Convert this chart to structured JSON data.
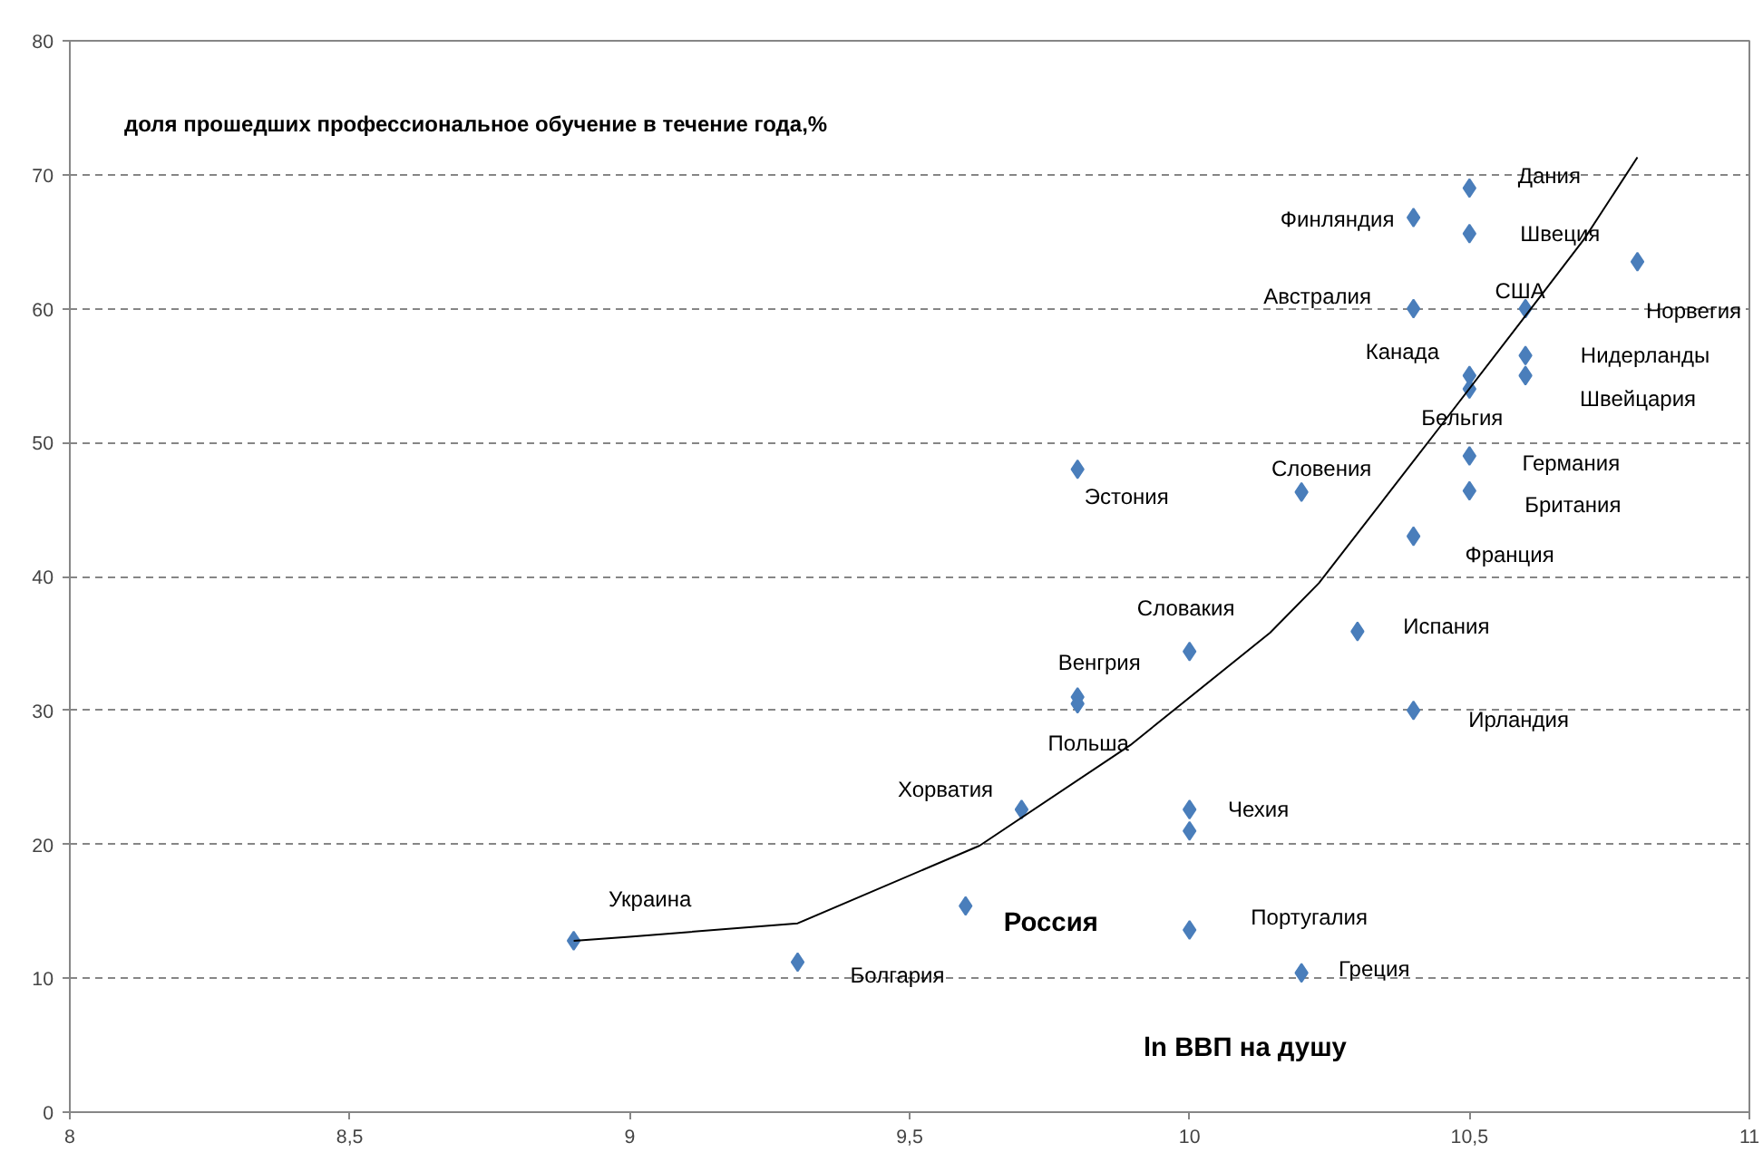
{
  "chart_data": {
    "type": "scatter",
    "title": "доля прошедших  профессиональное обучение в течение года,%",
    "xlabel": "ln  ВВП на душу",
    "xlim": [
      8,
      11
    ],
    "ylim": [
      0,
      80
    ],
    "xticks": [
      8,
      {
        "value": 8.5,
        "label": "8,5"
      },
      9,
      {
        "value": 9.5,
        "label": "9,5"
      },
      10,
      {
        "value": 10.5,
        "label": "10,5"
      },
      11
    ],
    "yticks": [
      0,
      10,
      20,
      30,
      40,
      50,
      60,
      70,
      80
    ],
    "grid": "y",
    "marker": "diamond",
    "series": [
      {
        "color": "#4a7ebb",
        "x": [
          8.9,
          9.3,
          9.6,
          9.7,
          9.8,
          9.8,
          9.8,
          10,
          10,
          10,
          10,
          10.2,
          10.2,
          10.3,
          10.4,
          10.4,
          10.4,
          10.4,
          10.5,
          10.5,
          10.5,
          10.5,
          10.5,
          10.5,
          10.6,
          10.6,
          10.6,
          10.8
        ],
        "values": [
          12.8,
          11.2,
          15.4,
          22.6,
          31,
          30.5,
          48,
          34.4,
          22.6,
          21,
          13.6,
          46.3,
          10.4,
          35.9,
          43,
          30,
          60,
          66.8,
          69,
          65.6,
          55,
          54,
          49,
          46.4,
          60,
          56.5,
          55,
          63.5
        ]
      },
      {
        "type": "line",
        "color": "#000000",
        "marker": "none",
        "line_style": "solid",
        "x": [
          8.9,
          9.0,
          9.3,
          9.625,
          9.894,
          10.144,
          10.231,
          10.446,
          10.588,
          10.705,
          10.8
        ],
        "values": [
          12.8,
          13.1,
          14.1,
          19.9,
          27.4,
          35.8,
          39.5,
          51.1,
          58.8,
          65.2,
          71.3
        ]
      }
    ],
    "annotations": [
      {
        "text": "Украина",
        "x": 8.9,
        "y": 12.8
      },
      {
        "text": "Болгария",
        "x": 9.3,
        "y": 11.2
      },
      {
        "text": "Россия",
        "x": 9.6,
        "y": 15.4
      },
      {
        "text": "Хорватия",
        "x": 9.7,
        "y": 22.6
      },
      {
        "text": "Польша",
        "x": 9.8,
        "y": 30.5
      },
      {
        "text": "Венгрия",
        "x": 9.8,
        "y": 31
      },
      {
        "text": "Словакия",
        "x": 10,
        "y": 34.4
      },
      {
        "text": "Чехия",
        "x": 10,
        "y": 22.6
      },
      {
        "text": "Португалия",
        "x": 10,
        "y": 13.6
      },
      {
        "text": "Греция",
        "x": 10.2,
        "y": 10.4
      },
      {
        "text": "Эстония",
        "x": 9.8,
        "y": 48
      },
      {
        "text": "Словения",
        "x": 10.2,
        "y": 46.3
      },
      {
        "text": "Испания",
        "x": 10.3,
        "y": 35.9
      },
      {
        "text": "Франция",
        "x": 10.4,
        "y": 43
      },
      {
        "text": "Ирландия",
        "x": 10.4,
        "y": 30
      },
      {
        "text": "Германия",
        "x": 10.5,
        "y": 49
      },
      {
        "text": "Британия",
        "x": 10.5,
        "y": 46.4
      },
      {
        "text": "Бельгия",
        "x": 10.5,
        "y": 54
      },
      {
        "text": "Канада",
        "x": 10.5,
        "y": 55
      },
      {
        "text": "Нидерланды",
        "x": 10.6,
        "y": 56.5
      },
      {
        "text": "Швейцария",
        "x": 10.6,
        "y": 55
      },
      {
        "text": "Норвегия",
        "x": 10.8,
        "y": 63.5
      },
      {
        "text": "США",
        "x": 10.6,
        "y": 60
      },
      {
        "text": "Австралия",
        "x": 10.4,
        "y": 60
      },
      {
        "text": "Финляндия",
        "x": 10.4,
        "y": 66.8
      },
      {
        "text": "Швеция",
        "x": 10.5,
        "y": 65.6
      },
      {
        "text": "Дания",
        "x": 10.5,
        "y": 69
      }
    ]
  }
}
